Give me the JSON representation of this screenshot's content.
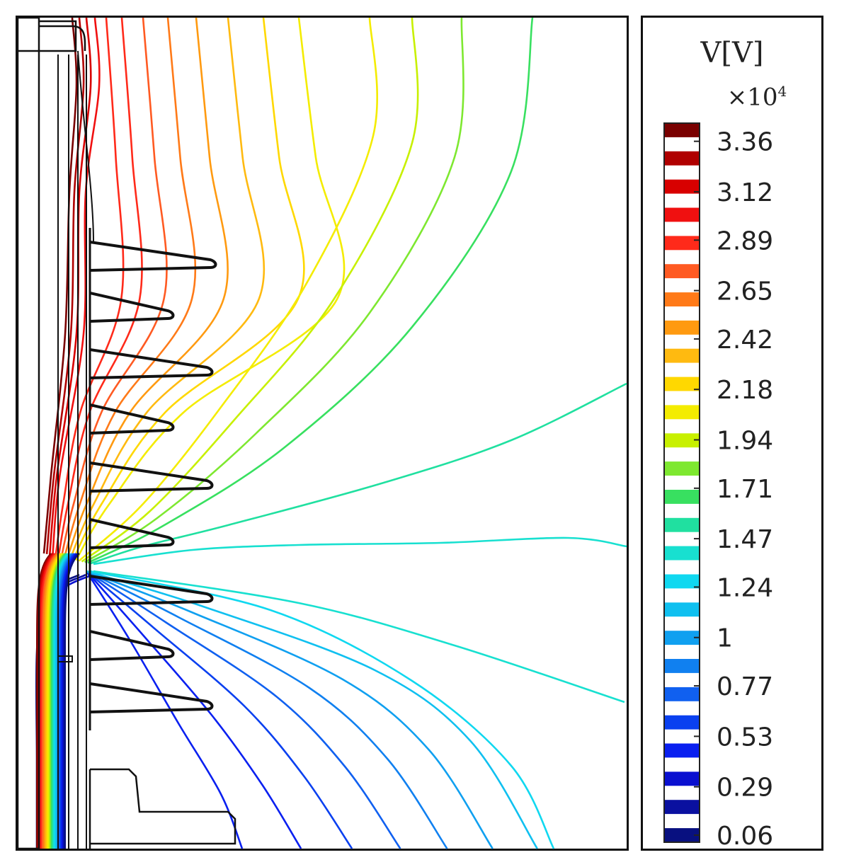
{
  "chart_data": {
    "type": "contour",
    "title": "",
    "colorbar": {
      "label": "V[V]",
      "multiplier_base": "×10",
      "multiplier_exp": "4",
      "ticks": [
        "3.36",
        "3.12",
        "2.89",
        "2.65",
        "2.42",
        "2.18",
        "1.94",
        "1.71",
        "1.47",
        "1.24",
        "1",
        "0.77",
        "0.53",
        "0.29",
        "0.06"
      ],
      "tick_values": [
        3.36,
        3.12,
        2.89,
        2.65,
        2.42,
        2.18,
        1.94,
        1.71,
        1.47,
        1.24,
        1.0,
        0.77,
        0.53,
        0.29,
        0.06
      ],
      "range": [
        0.06,
        3.48
      ],
      "colors": [
        "#7a0000",
        "#b00000",
        "#d80000",
        "#f01010",
        "#ff2a1a",
        "#ff5a22",
        "#ff7a18",
        "#ff9a10",
        "#ffba10",
        "#ffd800",
        "#f4ec00",
        "#c8f000",
        "#7ee830",
        "#38e060",
        "#20e0a0",
        "#18e0d0",
        "#10d8f0",
        "#10c0f0",
        "#10a0f0",
        "#1080f0",
        "#1060f0",
        "#0a40f0",
        "#0a20f0",
        "#0a10d0",
        "#0a10a0",
        "#081080"
      ]
    },
    "contour_levels_high": [
      3.45,
      3.36,
      3.25,
      3.12,
      3.0,
      2.89,
      2.77,
      2.65,
      2.53,
      2.42,
      2.3,
      2.18,
      2.06,
      1.94,
      1.83,
      1.71,
      1.59,
      1.47
    ],
    "contour_levels_low": [
      0.06,
      0.18,
      0.29,
      0.41,
      0.53,
      0.65,
      0.77,
      0.88,
      1.0,
      1.12,
      1.24,
      1.36
    ]
  }
}
